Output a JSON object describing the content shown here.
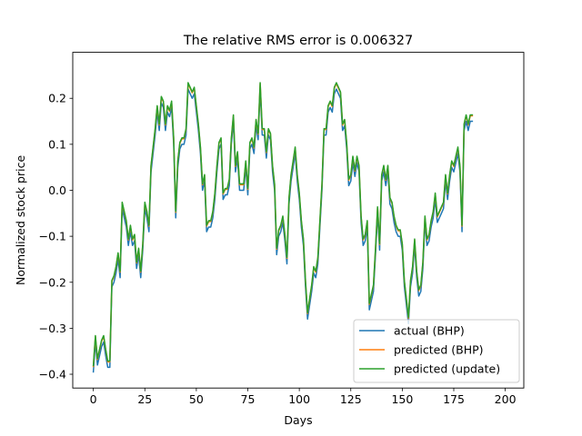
{
  "chart_data": {
    "type": "line",
    "title": "The relative RMS error is 0.006327",
    "xlabel": "Days",
    "ylabel": "Normalized stock price",
    "xlim": [
      -10,
      209
    ],
    "ylim": [
      -0.43,
      0.3
    ],
    "xticks": [
      0,
      25,
      50,
      75,
      100,
      125,
      150,
      175,
      200
    ],
    "yticks": [
      -0.4,
      -0.3,
      -0.2,
      -0.1,
      0.0,
      0.1,
      0.2
    ],
    "ytick_labels": [
      "−0.4",
      "−0.3",
      "−0.2",
      "−0.1",
      "0.0",
      "0.1",
      "0.2"
    ],
    "grid": false,
    "legend_position": "lower-right",
    "colors": {
      "actual": "#1f77b4",
      "predicted": "#ff7f0e",
      "update": "#2ca02c"
    },
    "keypoints": [
      [
        0,
        -0.395
      ],
      [
        1,
        -0.33
      ],
      [
        2,
        -0.38
      ],
      [
        4,
        -0.34
      ],
      [
        5,
        -0.33
      ],
      [
        6,
        -0.36
      ],
      [
        7,
        -0.385
      ],
      [
        8,
        -0.385
      ],
      [
        9,
        -0.21
      ],
      [
        10,
        -0.2
      ],
      [
        11,
        -0.18
      ],
      [
        12,
        -0.15
      ],
      [
        13,
        -0.19
      ],
      [
        14,
        -0.04
      ],
      [
        15,
        -0.06
      ],
      [
        16,
        -0.08
      ],
      [
        17,
        -0.12
      ],
      [
        18,
        -0.09
      ],
      [
        19,
        -0.12
      ],
      [
        20,
        -0.11
      ],
      [
        21,
        -0.17
      ],
      [
        22,
        -0.14
      ],
      [
        23,
        -0.19
      ],
      [
        24,
        -0.13
      ],
      [
        25,
        -0.04
      ],
      [
        26,
        -0.06
      ],
      [
        27,
        -0.09
      ],
      [
        28,
        0.04
      ],
      [
        29,
        0.08
      ],
      [
        30,
        0.12
      ],
      [
        31,
        0.17
      ],
      [
        32,
        0.13
      ],
      [
        33,
        0.19
      ],
      [
        34,
        0.18
      ],
      [
        35,
        0.13
      ],
      [
        36,
        0.17
      ],
      [
        37,
        0.16
      ],
      [
        38,
        0.18
      ],
      [
        39,
        0.1
      ],
      [
        40,
        -0.06
      ],
      [
        41,
        0.05
      ],
      [
        42,
        0.09
      ],
      [
        43,
        0.1
      ],
      [
        44,
        0.1
      ],
      [
        45,
        0.12
      ],
      [
        46,
        0.22
      ],
      [
        47,
        0.21
      ],
      [
        48,
        0.2
      ],
      [
        49,
        0.21
      ],
      [
        50,
        0.17
      ],
      [
        51,
        0.13
      ],
      [
        52,
        0.08
      ],
      [
        53,
        0.0
      ],
      [
        54,
        0.02
      ],
      [
        55,
        -0.09
      ],
      [
        56,
        -0.08
      ],
      [
        57,
        -0.08
      ],
      [
        58,
        -0.06
      ],
      [
        59,
        -0.02
      ],
      [
        60,
        0.04
      ],
      [
        61,
        0.09
      ],
      [
        62,
        0.1
      ],
      [
        63,
        -0.02
      ],
      [
        64,
        -0.01
      ],
      [
        65,
        -0.01
      ],
      [
        66,
        0.01
      ],
      [
        67,
        0.1
      ],
      [
        68,
        0.15
      ],
      [
        69,
        0.04
      ],
      [
        70,
        0.07
      ],
      [
        71,
        0.0
      ],
      [
        72,
        0.0
      ],
      [
        73,
        0.0
      ],
      [
        74,
        0.05
      ],
      [
        75,
        -0.01
      ],
      [
        76,
        0.09
      ],
      [
        77,
        0.1
      ],
      [
        78,
        0.08
      ],
      [
        79,
        0.14
      ],
      [
        80,
        0.11
      ],
      [
        81,
        0.22
      ],
      [
        82,
        0.12
      ],
      [
        83,
        0.12
      ],
      [
        84,
        0.07
      ],
      [
        85,
        0.12
      ],
      [
        86,
        0.11
      ],
      [
        87,
        0.04
      ],
      [
        88,
        0.0
      ],
      [
        89,
        -0.14
      ],
      [
        90,
        -0.1
      ],
      [
        91,
        -0.09
      ],
      [
        92,
        -0.07
      ],
      [
        93,
        -0.11
      ],
      [
        94,
        -0.16
      ],
      [
        95,
        -0.03
      ],
      [
        96,
        0.02
      ],
      [
        97,
        0.05
      ],
      [
        98,
        0.08
      ],
      [
        99,
        0.02
      ],
      [
        100,
        -0.02
      ],
      [
        101,
        -0.08
      ],
      [
        102,
        -0.12
      ],
      [
        103,
        -0.21
      ],
      [
        104,
        -0.28
      ],
      [
        105,
        -0.25
      ],
      [
        106,
        -0.22
      ],
      [
        107,
        -0.18
      ],
      [
        108,
        -0.19
      ],
      [
        109,
        -0.16
      ],
      [
        110,
        -0.08
      ],
      [
        111,
        0.0
      ],
      [
        112,
        0.12
      ],
      [
        113,
        0.12
      ],
      [
        114,
        0.17
      ],
      [
        115,
        0.18
      ],
      [
        116,
        0.17
      ],
      [
        117,
        0.21
      ],
      [
        118,
        0.22
      ],
      [
        119,
        0.21
      ],
      [
        120,
        0.2
      ],
      [
        121,
        0.13
      ],
      [
        122,
        0.14
      ],
      [
        123,
        0.09
      ],
      [
        124,
        0.01
      ],
      [
        125,
        0.02
      ],
      [
        126,
        0.06
      ],
      [
        127,
        0.03
      ],
      [
        128,
        0.06
      ],
      [
        129,
        0.04
      ],
      [
        130,
        -0.07
      ],
      [
        131,
        -0.12
      ],
      [
        132,
        -0.11
      ],
      [
        133,
        -0.08
      ],
      [
        134,
        -0.26
      ],
      [
        135,
        -0.24
      ],
      [
        136,
        -0.22
      ],
      [
        137,
        -0.14
      ],
      [
        138,
        -0.05
      ],
      [
        139,
        -0.13
      ],
      [
        140,
        0.02
      ],
      [
        141,
        0.04
      ],
      [
        142,
        0.01
      ],
      [
        143,
        0.04
      ],
      [
        144,
        -0.03
      ],
      [
        145,
        -0.04
      ],
      [
        146,
        -0.07
      ],
      [
        147,
        -0.09
      ],
      [
        148,
        -0.1
      ],
      [
        149,
        -0.1
      ],
      [
        150,
        -0.13
      ],
      [
        151,
        -0.21
      ],
      [
        152,
        -0.25
      ],
      [
        153,
        -0.29
      ],
      [
        154,
        -0.21
      ],
      [
        155,
        -0.18
      ],
      [
        156,
        -0.12
      ],
      [
        157,
        -0.19
      ],
      [
        158,
        -0.23
      ],
      [
        159,
        -0.22
      ],
      [
        160,
        -0.17
      ],
      [
        161,
        -0.07
      ],
      [
        162,
        -0.12
      ],
      [
        163,
        -0.11
      ],
      [
        164,
        -0.08
      ],
      [
        165,
        -0.06
      ],
      [
        166,
        -0.02
      ],
      [
        167,
        -0.07
      ],
      [
        168,
        -0.06
      ],
      [
        169,
        -0.05
      ],
      [
        170,
        -0.04
      ],
      [
        171,
        0.02
      ],
      [
        172,
        -0.02
      ],
      [
        173,
        0.02
      ],
      [
        174,
        0.05
      ],
      [
        175,
        0.04
      ],
      [
        176,
        0.06
      ],
      [
        177,
        0.08
      ],
      [
        178,
        0.04
      ],
      [
        179,
        -0.09
      ],
      [
        180,
        0.13
      ],
      [
        181,
        0.15
      ],
      [
        182,
        0.13
      ],
      [
        183,
        0.15
      ],
      [
        184,
        0.15
      ]
    ],
    "series": [
      {
        "name": "actual (BHP)",
        "color": "#1f77b4",
        "offset": 0.0
      },
      {
        "name": "predicted (BHP)",
        "color": "#ff7f0e",
        "offset": 0.012
      },
      {
        "name": "predicted (update)",
        "color": "#2ca02c",
        "offset": 0.014
      }
    ]
  }
}
